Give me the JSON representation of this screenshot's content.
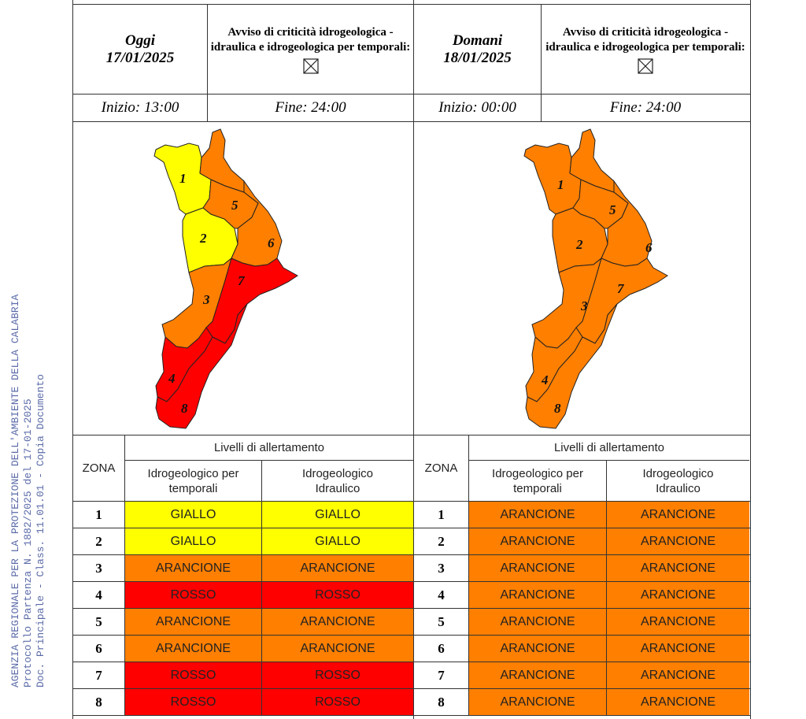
{
  "stamp": {
    "line1": "AGENZIA REGIONALE PER LA PROTEZIONE DELL'AMBIENTE DELLA CALABRIA",
    "line2": "Protocollo Partenza N. 1882/2025 del 17-01-2025",
    "line3": "Doc. Principale - Class. 11.01.01 - Copia Documento"
  },
  "today": {
    "label": "Oggi",
    "date": "17/01/2025",
    "avviso": "Avviso di criticità idrogeologica - idraulica e idrogeologica per temporali:",
    "inizio": "Inizio: 13:00",
    "fine": "Fine: 24:00"
  },
  "tomorrow": {
    "label": "Domani",
    "date": "18/01/2025",
    "avviso": "Avviso di criticità idrogeologica - idraulica e idrogeologica per temporali:",
    "inizio": "Inizio: 00:00",
    "fine": "Fine: 24:00"
  },
  "table_headers": {
    "zona": "ZONA",
    "livelli": "Livelli di allertamento",
    "col1": "Idrogeologico per temporali",
    "col2": "Idrogeologico Idraulico"
  },
  "colors": {
    "GIALLO": "#ffff00",
    "ARANCIONE": "#ff7f00",
    "ROSSO": "#ff0000"
  },
  "zones_today": [
    {
      "zona": "1",
      "temporali": "GIALLO",
      "idraulico": "GIALLO"
    },
    {
      "zona": "2",
      "temporali": "GIALLO",
      "idraulico": "GIALLO"
    },
    {
      "zona": "3",
      "temporali": "ARANCIONE",
      "idraulico": "ARANCIONE"
    },
    {
      "zona": "4",
      "temporali": "ROSSO",
      "idraulico": "ROSSO"
    },
    {
      "zona": "5",
      "temporali": "ARANCIONE",
      "idraulico": "ARANCIONE"
    },
    {
      "zona": "6",
      "temporali": "ARANCIONE",
      "idraulico": "ARANCIONE"
    },
    {
      "zona": "7",
      "temporali": "ROSSO",
      "idraulico": "ROSSO"
    },
    {
      "zona": "8",
      "temporali": "ROSSO",
      "idraulico": "ROSSO"
    }
  ],
  "zones_tomorrow": [
    {
      "zona": "1",
      "temporali": "ARANCIONE",
      "idraulico": "ARANCIONE"
    },
    {
      "zona": "2",
      "temporali": "ARANCIONE",
      "idraulico": "ARANCIONE"
    },
    {
      "zona": "3",
      "temporali": "ARANCIONE",
      "idraulico": "ARANCIONE"
    },
    {
      "zona": "4",
      "temporali": "ARANCIONE",
      "idraulico": "ARANCIONE"
    },
    {
      "zona": "5",
      "temporali": "ARANCIONE",
      "idraulico": "ARANCIONE"
    },
    {
      "zona": "6",
      "temporali": "ARANCIONE",
      "idraulico": "ARANCIONE"
    },
    {
      "zona": "7",
      "temporali": "ARANCIONE",
      "idraulico": "ARANCIONE"
    },
    {
      "zona": "8",
      "temporali": "ARANCIONE",
      "idraulico": "ARANCIONE"
    }
  ],
  "map_today": {
    "z1": "1",
    "z2": "2",
    "z3": "3",
    "z4": "4",
    "z5": "5",
    "z6": "6",
    "z7": "7",
    "z8": "8",
    "colors": {
      "z1": "#ffff00",
      "z2": "#ffff00",
      "z3": "#ff7f00",
      "z4": "#ff0000",
      "z5": "#ff7f00",
      "z6": "#ff7f00",
      "z7": "#ff0000",
      "z8": "#ff0000"
    }
  },
  "map_tomorrow": {
    "z1": "1",
    "z2": "2",
    "z3": "3",
    "z4": "4",
    "z5": "5",
    "z6": "6",
    "z7": "7",
    "z8": "8",
    "colors": {
      "z1": "#ff7f00",
      "z2": "#ff7f00",
      "z3": "#ff7f00",
      "z4": "#ff7f00",
      "z5": "#ff7f00",
      "z6": "#ff7f00",
      "z7": "#ff7f00",
      "z8": "#ff7f00"
    }
  }
}
